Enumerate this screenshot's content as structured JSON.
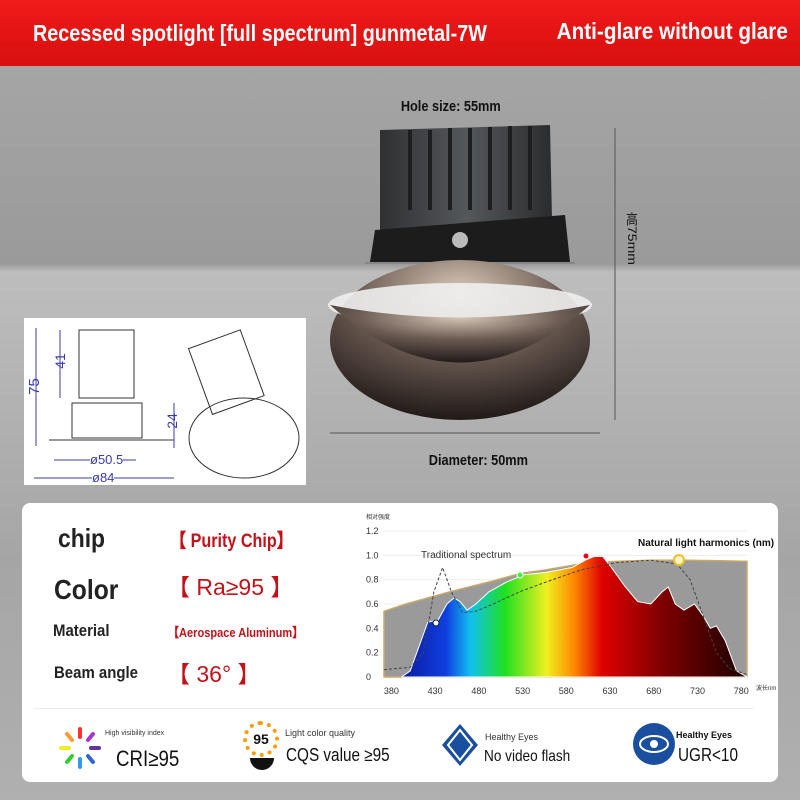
{
  "header": {
    "title": "Recessed spotlight [full spectrum] gunmetal-7W",
    "slogan": "Anti-glare without glare",
    "bg": "#e01414"
  },
  "product": {
    "hole_size": "Hole size: 55mm",
    "height": "高75mm",
    "diameter": "Diameter: 50mm"
  },
  "drawing": {
    "dims": [
      "75",
      "41",
      "24",
      "ø50.5",
      "ø84"
    ]
  },
  "specs": [
    {
      "key": "chip",
      "value": "【 Purity Chip】"
    },
    {
      "key": "Color",
      "value": "【 Ra≥95 】"
    },
    {
      "key": "Material",
      "value": "【Aerospace Aluminum】"
    },
    {
      "key": "Beam angle",
      "value": "【 36° 】"
    }
  ],
  "chart_data": {
    "type": "area",
    "ylabel": "相对强度",
    "xlabel": "波长nm",
    "x_ticks": [
      380,
      430,
      480,
      530,
      580,
      630,
      680,
      730,
      780
    ],
    "y_ticks": [
      "0",
      "0.2",
      "0.4",
      "0.6",
      "0.8",
      "1.0",
      "1.2"
    ],
    "xlim": [
      375,
      790
    ],
    "ylim": [
      0,
      1.2
    ],
    "annotations": [
      "Traditional spectrum",
      "Natural light harmonics (nm)"
    ],
    "series": [
      {
        "id": "natural",
        "color": "#9a9a9a",
        "x": [
          375,
          400,
          450,
          500,
          530,
          560,
          600,
          640,
          680,
          720,
          760,
          790
        ],
        "y": [
          0.54,
          0.6,
          0.7,
          0.79,
          0.85,
          0.88,
          0.93,
          0.95,
          0.96,
          0.96,
          0.955,
          0.95
        ]
      },
      {
        "id": "chip",
        "x": [
          395,
          405,
          415,
          425,
          437,
          447,
          455,
          462,
          470,
          480,
          495,
          515,
          535,
          560,
          590,
          605,
          615,
          625,
          635,
          650,
          665,
          680,
          693,
          700,
          708,
          718,
          730,
          740,
          748,
          755,
          765,
          778,
          790
        ],
        "y": [
          0,
          0.05,
          0.25,
          0.45,
          0.47,
          0.6,
          0.65,
          0.62,
          0.55,
          0.6,
          0.7,
          0.78,
          0.84,
          0.86,
          0.9,
          0.96,
          0.99,
          0.99,
          0.9,
          0.75,
          0.62,
          0.6,
          0.7,
          0.74,
          0.6,
          0.55,
          0.6,
          0.5,
          0.4,
          0.42,
          0.3,
          0.05,
          0
        ]
      },
      {
        "id": "traditional",
        "x": [
          375,
          405,
          420,
          432,
          442,
          452,
          465,
          480,
          500,
          530,
          560,
          600,
          640,
          680,
          710,
          725,
          740,
          755,
          770,
          790
        ],
        "y": [
          0.06,
          0.08,
          0.2,
          0.7,
          0.9,
          0.7,
          0.53,
          0.54,
          0.6,
          0.7,
          0.78,
          0.88,
          0.94,
          0.96,
          0.93,
          0.8,
          0.5,
          0.2,
          0.07,
          0.02
        ]
      }
    ]
  },
  "features": [
    {
      "icon": "color-wheel-icon",
      "small": "High visibility index",
      "big": "CRI≥95"
    },
    {
      "icon": "cqs-badge-icon",
      "badge": "95",
      "small": "Light color quality",
      "big": "CQS value ≥95"
    },
    {
      "icon": "diamond-eye-icon",
      "small": "Healthy Eyes",
      "big": "No video flash"
    },
    {
      "icon": "eye-shield-icon",
      "small": "Healthy Eyes",
      "big": "UGR<10"
    }
  ]
}
